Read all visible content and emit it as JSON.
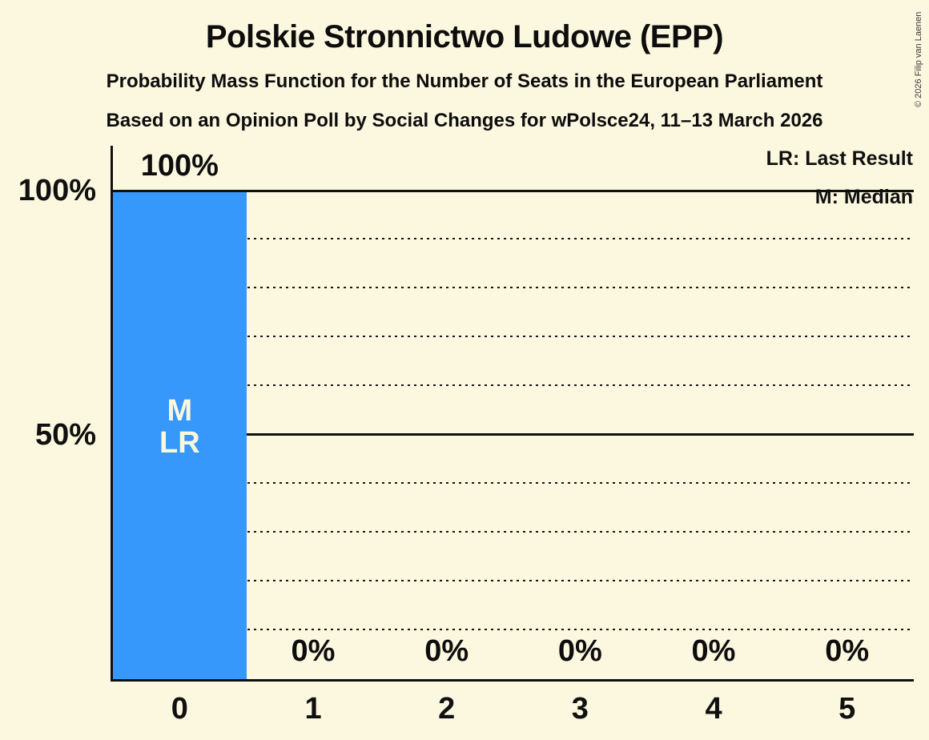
{
  "header": {
    "title": "Polskie Stronnictwo Ludowe (EPP)",
    "subtitle1": "Probability Mass Function for the Number of Seats in the European Parliament",
    "subtitle2": "Based on an Opinion Poll by Social Changes for wPolsce24, 11–13 March 2026"
  },
  "legend": {
    "lr": "LR: Last Result",
    "m": "M: Median"
  },
  "copyright": "© 2026 Filip van Laenen",
  "colors": {
    "background": "#FCF7DF",
    "bar": "#3598FA",
    "text": "#0d0d0d",
    "grid": "#161616"
  },
  "chart_data": {
    "type": "bar",
    "title": "Polskie Stronnictwo Ludowe (EPP)",
    "xlabel": "",
    "ylabel": "",
    "categories": [
      "0",
      "1",
      "2",
      "3",
      "4",
      "5"
    ],
    "values": [
      100,
      0,
      0,
      0,
      0,
      0
    ],
    "bar_labels": [
      "100%",
      "0%",
      "0%",
      "0%",
      "0%",
      "0%"
    ],
    "yticks": [
      {
        "value": 100,
        "label": "100%"
      },
      {
        "value": 50,
        "label": "50%"
      }
    ],
    "ylim": [
      0,
      109
    ],
    "gridlines_dotted": [
      10,
      20,
      30,
      40,
      60,
      70,
      80,
      90
    ],
    "gridlines_solid": [
      50,
      100
    ],
    "grid": true,
    "legend_position": "top-right",
    "median_seats": 0,
    "last_result_seats": 0,
    "annotations": [
      {
        "category_index": 0,
        "lines": [
          "M",
          "LR"
        ]
      }
    ]
  }
}
